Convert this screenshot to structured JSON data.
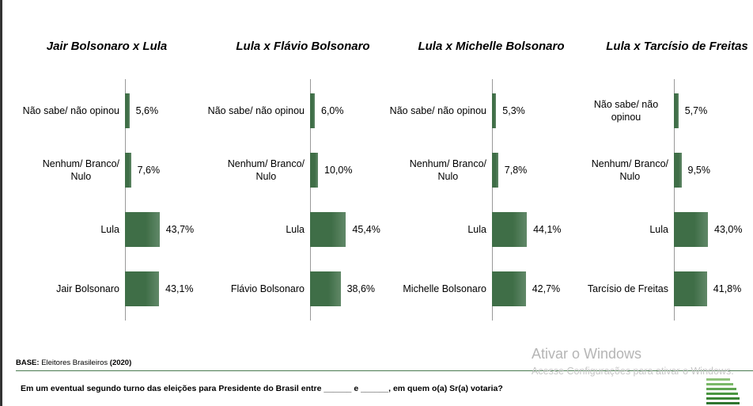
{
  "chart_data": [
    {
      "type": "barh",
      "title": "Jair Bolsonaro x Lula",
      "categories": [
        "Não sabe/ não opinou",
        "Nenhum/ Branco/\nNulo",
        "Lula",
        "Jair Bolsonaro"
      ],
      "values": [
        5.6,
        7.6,
        43.7,
        43.1
      ],
      "value_labels": [
        "5,6%",
        "7,6%",
        "43,7%",
        "43,1%"
      ],
      "color": "#3f6e47"
    },
    {
      "type": "barh",
      "title": "Lula x Flávio Bolsonaro",
      "categories": [
        "Não sabe/ não opinou",
        "Nenhum/ Branco/\nNulo",
        "Lula",
        "Flávio Bolsonaro"
      ],
      "values": [
        6.0,
        10.0,
        45.4,
        38.6
      ],
      "value_labels": [
        "6,0%",
        "10,0%",
        "45,4%",
        "38,6%"
      ],
      "color": "#3f6e47"
    },
    {
      "type": "barh",
      "title": "Lula x Michelle Bolsonaro",
      "categories": [
        "Não sabe/ não opinou",
        "Nenhum/ Branco/\nNulo",
        "Lula",
        "Michelle Bolsonaro"
      ],
      "values": [
        5.3,
        7.8,
        44.1,
        42.7
      ],
      "value_labels": [
        "5,3%",
        "7,8%",
        "44,1%",
        "42,7%"
      ],
      "color": "#3f6e47"
    },
    {
      "type": "barh",
      "title": "Lula x Tarcísio de Freitas",
      "categories": [
        "Não sabe/ não opinou",
        "Nenhum/ Branco/\nNulo",
        "Lula",
        "Tarcísio de Freitas"
      ],
      "values": [
        5.7,
        9.5,
        43.0,
        41.8
      ],
      "value_labels": [
        "5,7%",
        "9,5%",
        "43,0%",
        "41,8%"
      ],
      "color": "#3f6e47"
    }
  ],
  "footer": {
    "base_label": "BASE:",
    "base_text": "Eleitores Brasileiros",
    "base_year": "(2020)",
    "question": "Em um eventual segundo turno das eleições para Presidente do Brasil entre ______ e ______, em quem o(a) Sr(a) votaria?"
  },
  "watermark": {
    "title": "Ativar o Windows",
    "subtitle": "Acesse Configurações para ativar o Windows."
  }
}
